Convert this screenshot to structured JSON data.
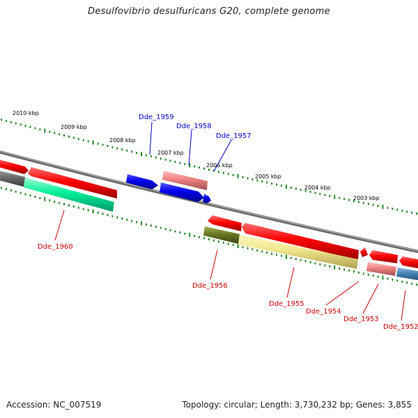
{
  "title": "Desulfovibrio desulfuricans G20, complete genome",
  "footer": {
    "accession": "Accession: NC_007519",
    "summary": "Topology: circular; Length: 3,730,232 bp; Genes: 3,855"
  },
  "ruler": {
    "labels": [
      "2010 kbp",
      "2009 kbp",
      "2008 kbp",
      "2007 kbp",
      "2006 kbp",
      "2005 kbp",
      "2004 kbp",
      "2003 kbp"
    ]
  },
  "genes": {
    "forward": [
      {
        "label": "Dde_1959",
        "color": "#0000dd"
      },
      {
        "label": "Dde_1958",
        "color": "#0000dd"
      },
      {
        "label": "Dde_1957",
        "color": "#0000dd"
      }
    ],
    "reverse": [
      {
        "label": "Dde_1960",
        "color": "#cc0000"
      },
      {
        "label": "Dde_1956",
        "color": "#cc0000"
      },
      {
        "label": "Dde_1955",
        "color": "#cc0000"
      },
      {
        "label": "Dde_1954",
        "color": "#cc0000"
      },
      {
        "label": "Dde_1953",
        "color": "#cc0000"
      },
      {
        "label": "Dde_1952",
        "color": "#cc0000"
      }
    ]
  },
  "colors": {
    "backbone": "#7a7a7a",
    "cds": "#ff0000",
    "trna": "#0000ff",
    "highlight_pink": "#f08080",
    "highlight_green": "#00ff99",
    "highlight_olive": "#667722",
    "highlight_khaki": "#f0e68c",
    "highlight_steel": "#4682b4",
    "highlight_gray": "#6a6a6a",
    "tick": "#228822"
  }
}
